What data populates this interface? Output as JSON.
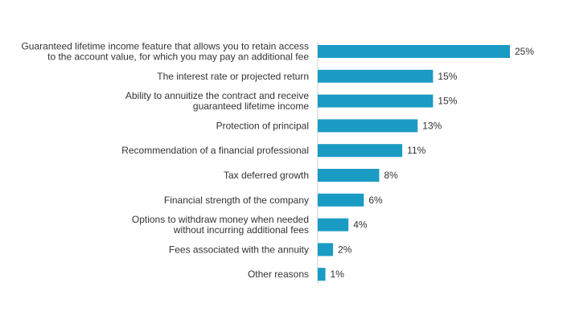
{
  "chart_data": {
    "type": "bar",
    "orientation": "horizontal",
    "categories": [
      [
        "Guaranteed lifetime income feature that allows you to retain access",
        "to the account value, for which you may pay an additional fee"
      ],
      [
        "The interest rate or projected return"
      ],
      [
        "Ability to annuitize the contract and receive",
        "guaranteed lifetime income"
      ],
      [
        "Protection of principal"
      ],
      [
        "Recommendation of a financial professional"
      ],
      [
        "Tax deferred growth"
      ],
      [
        "Financial strength of the company"
      ],
      [
        "Options to withdraw money when needed",
        "without incurring additional fees"
      ],
      [
        "Fees associated with the annuity"
      ],
      [
        "Other reasons"
      ]
    ],
    "values": [
      25,
      15,
      15,
      13,
      11,
      8,
      6,
      4,
      2,
      1
    ],
    "value_labels": [
      "25%",
      "15%",
      "15%",
      "13%",
      "11%",
      "8%",
      "6%",
      "4%",
      "2%",
      "1%"
    ],
    "xlim": [
      0,
      25
    ],
    "bar_color": "#1a9bc4",
    "grid": false,
    "legend": "none"
  }
}
